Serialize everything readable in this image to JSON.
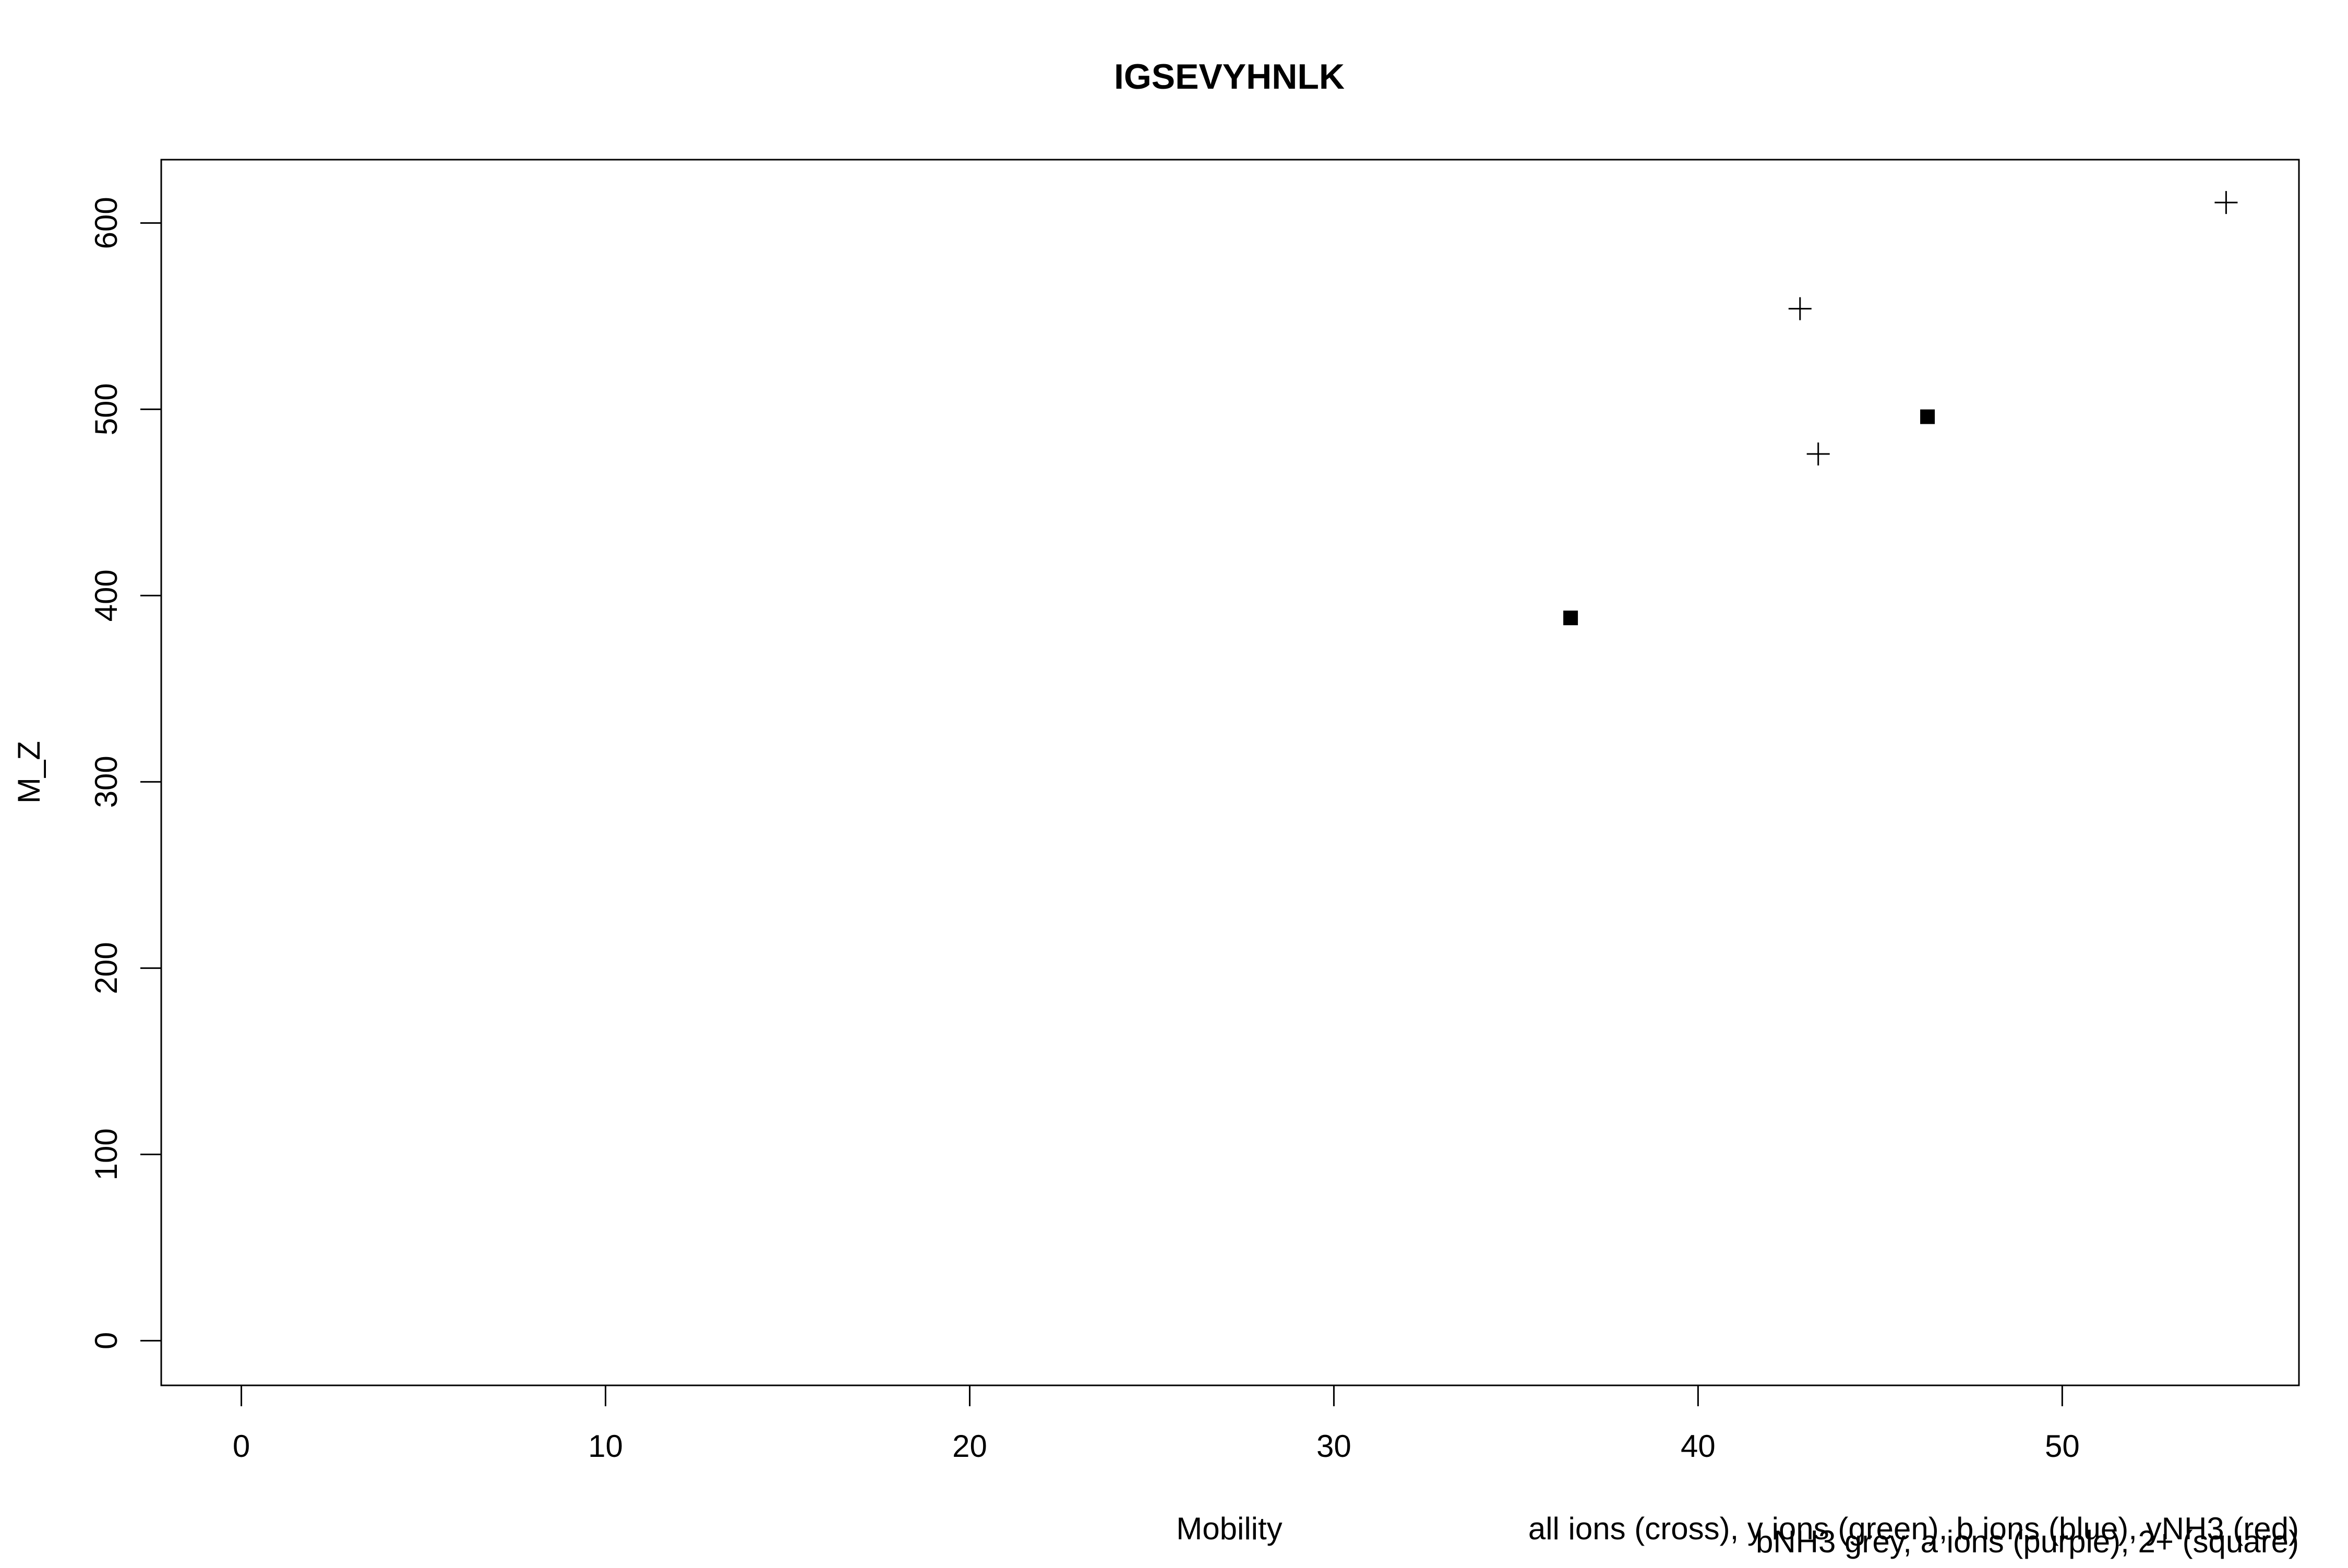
{
  "chart_data": {
    "type": "scatter",
    "title": "IGSEVYHNLK",
    "xlabel": "Mobility",
    "ylabel": "M_Z",
    "xlim": [
      -2.2,
      56.5
    ],
    "ylim": [
      -24,
      634
    ],
    "xticks": [
      0,
      10,
      20,
      30,
      40,
      50
    ],
    "yticks": [
      0,
      100,
      200,
      300,
      400,
      500,
      600
    ],
    "grid": false,
    "notes": [
      "all ions (cross), y ions (green), b ions (blue), yNH3 (red)",
      "bNH3 grey, a ions (purple), 2+ (square)"
    ],
    "series": [
      {
        "marker": "cross",
        "color": "#000000",
        "x": [
          42.8,
          43.3,
          54.5
        ],
        "y": [
          554,
          476,
          611
        ]
      },
      {
        "marker": "square",
        "color": "#000000",
        "x": [
          36.5,
          46.3
        ],
        "y": [
          388,
          496
        ]
      }
    ]
  }
}
